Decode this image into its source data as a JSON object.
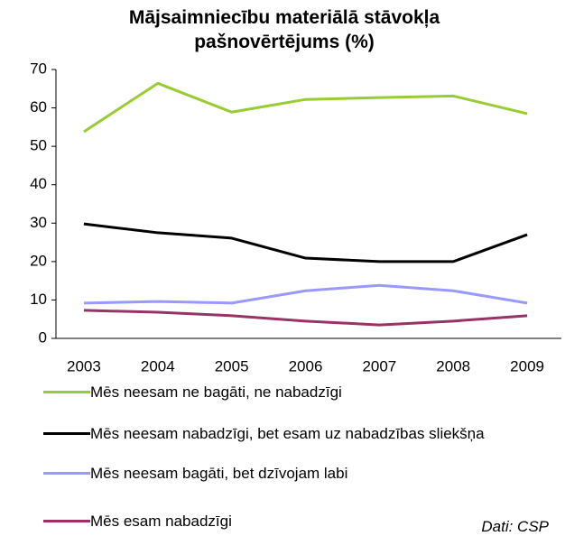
{
  "chart_data": {
    "type": "line",
    "title": "Mājsaimniecību materiālā stāvokļa pašnovērtējums (%)",
    "categories": [
      "2003",
      "2004",
      "2005",
      "2006",
      "2007",
      "2008",
      "2009"
    ],
    "series": [
      {
        "name": "Mēs neesam ne bagāti, ne nabadzīgi",
        "color": "#99cc33",
        "values": [
          53.8,
          66.4,
          58.9,
          62.2,
          62.7,
          63.1,
          58.5
        ]
      },
      {
        "name": "Mēs neesam nabadzīgi, bet esam uz nabadzības sliekšņa",
        "color": "#000000",
        "values": [
          29.8,
          27.5,
          26.1,
          20.9,
          20.0,
          20.0,
          27.0
        ]
      },
      {
        "name": "Mēs neesam bagāti, bet dzīvojam labi",
        "color": "#9999ff",
        "values": [
          9.2,
          9.6,
          9.2,
          12.4,
          13.8,
          12.4,
          9.2
        ]
      },
      {
        "name": "Mēs esam nabadzīgi",
        "color": "#993366",
        "values": [
          7.3,
          6.8,
          5.9,
          4.5,
          3.5,
          4.5,
          5.9
        ]
      }
    ],
    "ylim": [
      0,
      70
    ],
    "yticks": [
      0,
      10,
      20,
      30,
      40,
      50,
      60,
      70
    ],
    "grid": false,
    "legend": "bottom",
    "annotation": "Dati: CSP"
  }
}
